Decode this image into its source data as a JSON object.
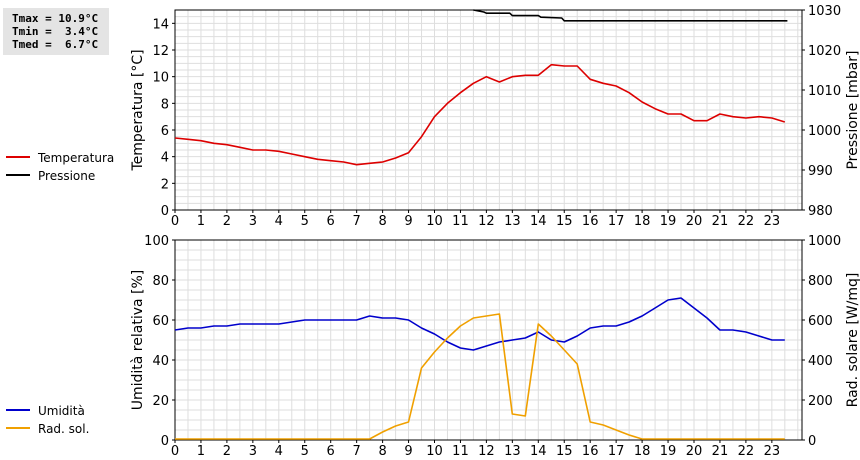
{
  "stats": {
    "tmax": "Tmax = 10.9°C",
    "tmin": "Tmin =  3.4°C",
    "tmed": "Tmed =  6.7°C"
  },
  "chart_data": [
    {
      "type": "line",
      "xlabel": "",
      "x_ticks": [
        0,
        1,
        2,
        3,
        4,
        5,
        6,
        7,
        8,
        9,
        10,
        11,
        12,
        13,
        14,
        15,
        16,
        17,
        18,
        19,
        20,
        21,
        22,
        23
      ],
      "xlim": [
        0,
        24
      ],
      "ylabel": "Temperatura [°C]",
      "ylim": [
        0,
        15
      ],
      "y_ticks": [
        0,
        2,
        4,
        6,
        8,
        10,
        12,
        14
      ],
      "y2label": "Pressione [mbar]",
      "y2lim": [
        980,
        1030
      ],
      "y2_ticks": [
        980,
        990,
        1000,
        1010,
        1020,
        1030
      ],
      "grid": true,
      "legend_position": "left",
      "series": [
        {
          "name": "Temperatura",
          "axis": "left",
          "color": "#dd0000",
          "x": [
            0,
            0.5,
            1,
            1.5,
            2,
            2.5,
            3,
            3.5,
            4,
            4.5,
            5,
            5.5,
            6,
            6.5,
            7,
            7.5,
            8,
            8.5,
            9,
            9.5,
            10,
            10.5,
            11,
            11.5,
            12,
            12.5,
            13,
            13.5,
            14,
            14.5,
            15,
            15.5,
            16,
            16.5,
            17,
            17.5,
            18,
            18.5,
            19,
            19.5,
            20,
            20.5,
            21,
            21.5,
            22,
            22.5,
            23,
            23.5
          ],
          "values": [
            5.4,
            5.3,
            5.2,
            5.0,
            4.9,
            4.7,
            4.5,
            4.5,
            4.4,
            4.2,
            4.0,
            3.8,
            3.7,
            3.6,
            3.4,
            3.5,
            3.6,
            3.9,
            4.3,
            5.5,
            7.0,
            8.0,
            8.8,
            9.5,
            10.0,
            9.6,
            10.0,
            10.1,
            10.1,
            10.9,
            10.8,
            10.8,
            9.8,
            9.5,
            9.3,
            8.8,
            8.1,
            7.6,
            7.2,
            7.2,
            6.7,
            6.7,
            7.2,
            7.0,
            6.9,
            7.0,
            6.9,
            6.6
          ]
        },
        {
          "name": "Pressione",
          "axis": "right",
          "color": "#000000",
          "x": [
            11.5,
            11.9,
            12,
            12.5,
            12.9,
            13,
            13.5,
            14,
            14.1,
            14.9,
            15,
            23.6
          ],
          "values": [
            1030.2,
            1029.5,
            1029.2,
            1029.2,
            1029.2,
            1028.6,
            1028.6,
            1028.6,
            1028.2,
            1028.0,
            1027.3,
            1027.3
          ]
        }
      ]
    },
    {
      "type": "line",
      "xlabel": "",
      "x_ticks": [
        0,
        1,
        2,
        3,
        4,
        5,
        6,
        7,
        8,
        9,
        10,
        11,
        12,
        13,
        14,
        15,
        16,
        17,
        18,
        19,
        20,
        21,
        22,
        23
      ],
      "xlim": [
        0,
        24
      ],
      "ylabel": "Umidità relativa [%]",
      "ylim": [
        0,
        100
      ],
      "y_ticks": [
        0,
        20,
        40,
        60,
        80,
        100
      ],
      "y2label": "Rad. solare [W/mq]",
      "y2lim": [
        0,
        1000
      ],
      "y2_ticks": [
        0,
        200,
        400,
        600,
        800,
        1000
      ],
      "grid": true,
      "legend_position": "left",
      "series": [
        {
          "name": "Umidità",
          "axis": "left",
          "color": "#0000cc",
          "x": [
            0,
            0.5,
            1,
            1.5,
            2,
            2.5,
            3,
            3.5,
            4,
            4.5,
            5,
            5.5,
            6,
            6.5,
            7,
            7.5,
            8,
            8.5,
            9,
            9.5,
            10,
            10.5,
            11,
            11.5,
            12,
            12.5,
            13,
            13.5,
            14,
            14.5,
            15,
            15.5,
            16,
            16.5,
            17,
            17.5,
            18,
            18.5,
            19,
            19.5,
            20,
            20.5,
            21,
            21.5,
            22,
            22.5,
            23,
            23.5
          ],
          "values": [
            55,
            56,
            56,
            57,
            57,
            58,
            58,
            58,
            58,
            59,
            60,
            60,
            60,
            60,
            60,
            62,
            61,
            61,
            60,
            56,
            53,
            49,
            46,
            45,
            47,
            49,
            50,
            51,
            54,
            50,
            49,
            52,
            56,
            57,
            57,
            59,
            62,
            66,
            70,
            71,
            66,
            61,
            55,
            55,
            54,
            52,
            50,
            50
          ]
        },
        {
          "name": "Rad. sol.",
          "axis": "right",
          "color": "#f0a000",
          "x": [
            0,
            7.5,
            8,
            8.5,
            9,
            9.5,
            10,
            10.5,
            11,
            11.5,
            12,
            12.5,
            13,
            13.5,
            14,
            14.5,
            15,
            15.5,
            16,
            16.5,
            17,
            17.5,
            18,
            23.5
          ],
          "values": [
            5,
            5,
            40,
            70,
            90,
            360,
            440,
            510,
            570,
            610,
            620,
            630,
            130,
            120,
            580,
            520,
            450,
            380,
            90,
            75,
            50,
            25,
            5,
            5
          ]
        }
      ]
    }
  ]
}
